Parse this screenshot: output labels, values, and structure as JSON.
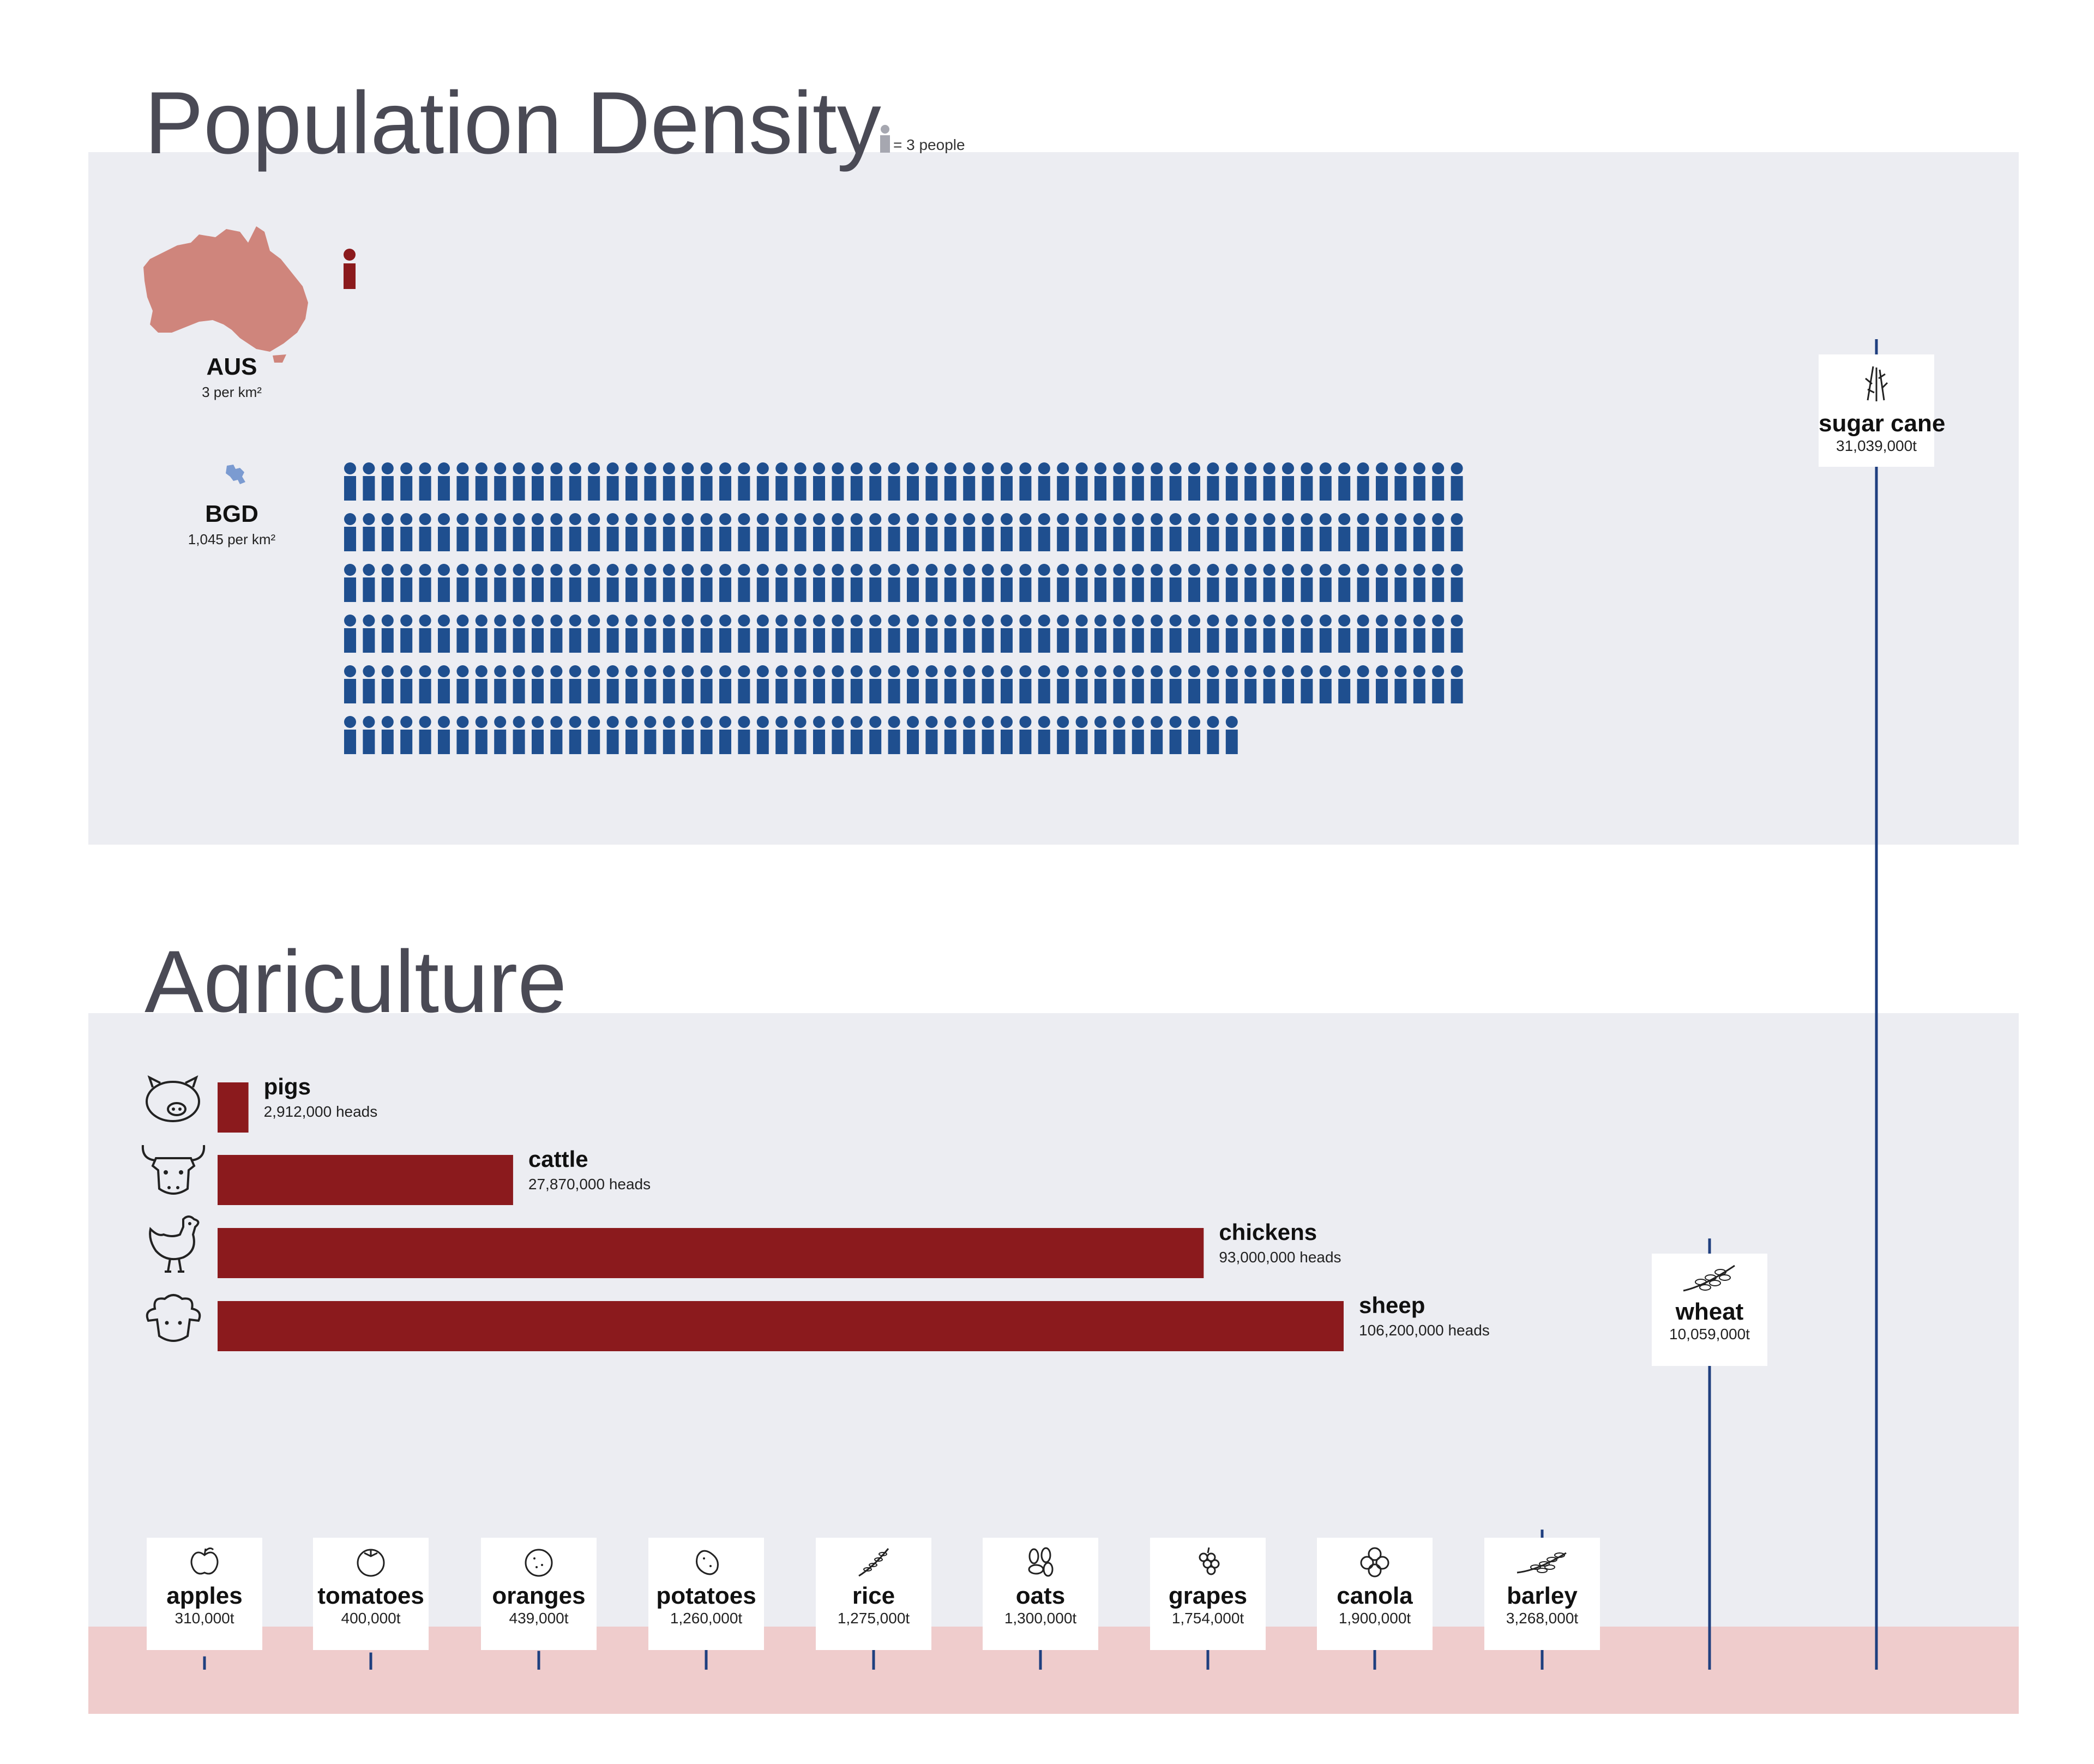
{
  "colors": {
    "panel": "#ecedf2",
    "title": "#4a4a55",
    "aus_fill": "#cf857c",
    "aus_person": "#8b1a1d",
    "bgd_person": "#1f4f8f",
    "bar": "#8b1a1d",
    "stem": "#1f3f7f",
    "band": "#efcccc",
    "legend_icon": "#a6a7b0"
  },
  "population": {
    "title": "Population Density",
    "legend": "= 3 people",
    "countries": [
      {
        "code": "AUS",
        "density": "3 per km²",
        "icons": 1
      },
      {
        "code": "BGD",
        "density": "1,045 per km²",
        "icons": 348
      }
    ]
  },
  "agriculture": {
    "title": "Agriculture"
  },
  "chart_data": [
    {
      "type": "bar",
      "orientation": "horizontal",
      "unit": "heads",
      "categories": [
        "pigs",
        "cattle",
        "chickens",
        "sheep"
      ],
      "values": [
        2912000,
        27870000,
        93000000,
        106200000
      ],
      "labels": [
        "2,912,000 heads",
        "27,870,000 heads",
        "93,000,000 heads",
        "106,200,000 heads"
      ],
      "icons": [
        "pig-icon",
        "cow-icon",
        "chicken-icon",
        "sheep-icon"
      ]
    },
    {
      "type": "bar",
      "orientation": "vertical-lollipop",
      "unit": "t",
      "categories": [
        "apples",
        "tomatoes",
        "oranges",
        "potatoes",
        "rice",
        "oats",
        "grapes",
        "canola",
        "barley",
        "wheat",
        "sugar cane"
      ],
      "values": [
        310000,
        400000,
        439000,
        1260000,
        1275000,
        1300000,
        1754000,
        1900000,
        3268000,
        10059000,
        31039000
      ],
      "labels": [
        "310,000t",
        "400,000t",
        "439,000t",
        "1,260,000t",
        "1,275,000t",
        "1,300,000t",
        "1,754,000t",
        "1,900,000t",
        "3,268,000t",
        "10,059,000t",
        "31,039,000t"
      ],
      "icons": [
        "apple-icon",
        "tomato-icon",
        "orange-icon",
        "potato-icon",
        "rice-icon",
        "oats-icon",
        "grapes-icon",
        "canola-icon",
        "barley-icon",
        "wheat-icon",
        "sugar-cane-icon"
      ]
    }
  ]
}
